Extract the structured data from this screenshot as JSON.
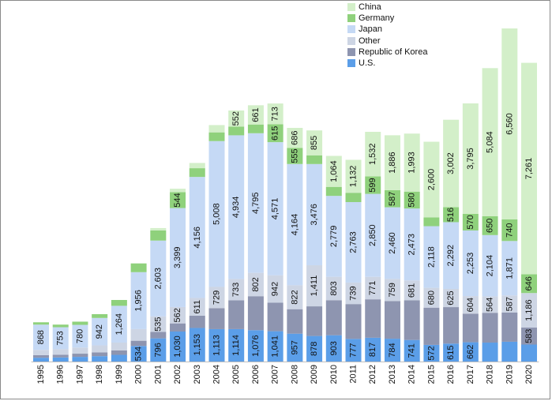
{
  "chart_data": {
    "type": "bar",
    "stacked": true,
    "title": "",
    "xlabel": "",
    "ylabel": "",
    "categories": [
      "1995",
      "1996",
      "1997",
      "1998",
      "1999",
      "2000",
      "2001",
      "2002",
      "2003",
      "2004",
      "2005",
      "2006",
      "2007",
      "2008",
      "2009",
      "2010",
      "2011",
      "2012",
      "2013",
      "2014",
      "2015",
      "2016",
      "2017",
      "2018",
      "2019",
      "2020"
    ],
    "series": [
      {
        "name": "U.S.",
        "color": "#5b9ee8",
        "values": [
          130,
          140,
          160,
          185,
          230,
          534,
          796,
          1030,
          1153,
          1113,
          1114,
          1076,
          1041,
          957,
          878,
          903,
          777,
          817,
          784,
          741,
          572,
          615,
          662,
          650,
          680,
          583
        ],
        "labels": [
          "",
          "",
          "",
          "",
          "",
          "534",
          "796",
          "1,030",
          "1,153",
          "1,113",
          "1,114",
          "1,076",
          "1,041",
          "957",
          "878",
          "903",
          "777",
          "817",
          "784",
          "741",
          "572",
          "615",
          "662",
          "",
          "",
          ""
        ]
      },
      {
        "name": "Republic of Korea",
        "color": "#8e95b0",
        "values": [
          90,
          95,
          110,
          130,
          150,
          180,
          220,
          280,
          420,
          721,
          989,
          1168,
          980,
          841,
          1018,
          1204,
          1197,
          1320,
          1295,
          1361,
          1279,
          1254,
          982,
          1025,
          1002,
          583
        ],
        "labels": [
          "",
          "",
          "",
          "",
          "",
          "",
          "",
          "",
          "",
          "",
          "",
          "",
          "",
          "",
          "",
          "",
          "",
          "",
          "",
          "",
          "",
          "",
          "",
          "",
          "",
          "583"
        ]
      },
      {
        "name": "Other",
        "color": "#cdd5e4",
        "values": [
          180,
          190,
          210,
          240,
          270,
          400,
          535,
          562,
          611,
          729,
          733,
          802,
          942,
          822,
          1411,
          803,
          739,
          771,
          759,
          681,
          680,
          625,
          604,
          564,
          587,
          1186
        ],
        "labels": [
          "",
          "",
          "",
          "",
          "",
          "",
          "535",
          "562",
          "611",
          "729",
          "733",
          "802",
          "942",
          "822",
          "1,411",
          "803",
          "739",
          "771",
          "759",
          "681",
          "680",
          "625",
          "604",
          "564",
          "587",
          "1,186"
        ]
      },
      {
        "name": "Japan",
        "color": "#c5d9f5",
        "values": [
          868,
          753,
          780,
          942,
          1264,
          1956,
          2603,
          3399,
          4156,
          5008,
          4934,
          4795,
          4571,
          4164,
          3476,
          2779,
          2763,
          2850,
          2460,
          2473,
          2118,
          2292,
          2253,
          2104,
          1871,
          0
        ],
        "labels": [
          "868",
          "753",
          "780",
          "942",
          "1,264",
          "1,956",
          "2,603",
          "3,399",
          "4,156",
          "5,008",
          "4,934",
          "4,795",
          "4,571",
          "4,164",
          "3,476",
          "2,779",
          "2,763",
          "2,850",
          "2,460",
          "2,473",
          "2,118",
          "2,292",
          "2,253",
          "2,104",
          "1,871",
          ""
        ]
      },
      {
        "name": "Germany",
        "color": "#8fd17c",
        "values": [
          80,
          90,
          110,
          130,
          200,
          300,
          350,
          544,
          300,
          300,
          300,
          300,
          615,
          555,
          300,
          310,
          320,
          599,
          587,
          580,
          300,
          516,
          570,
          650,
          740,
          646
        ],
        "labels": [
          "",
          "",
          "",
          "",
          "",
          "",
          "",
          "544",
          "",
          "",
          "",
          "",
          "615",
          "555",
          "",
          "",
          "",
          "599",
          "587",
          "580",
          "",
          "516",
          "570",
          "650",
          "740",
          "646"
        ]
      },
      {
        "name": "China",
        "color": "#d3efc9",
        "values": [
          0,
          0,
          0,
          0,
          0,
          0,
          80,
          120,
          180,
          250,
          552,
          661,
          713,
          686,
          855,
          1064,
          1132,
          1532,
          1886,
          1993,
          2600,
          3002,
          3795,
          5084,
          6560,
          7261
        ],
        "labels": [
          "",
          "",
          "",
          "",
          "",
          "",
          "",
          "",
          "",
          "",
          "552",
          "661",
          "713",
          "686",
          "855",
          "1,064",
          "1,132",
          "1,532",
          "1,886",
          "1,993",
          "2,600",
          "3,002",
          "3,795",
          "5,084",
          "6,560",
          "7,261"
        ]
      }
    ],
    "ylim": [
      0,
      12200
    ],
    "legend_position": "top-right",
    "legend_order": [
      "China",
      "Germany",
      "Japan",
      "Other",
      "Republic of Korea",
      "U.S."
    ],
    "grid": false
  }
}
